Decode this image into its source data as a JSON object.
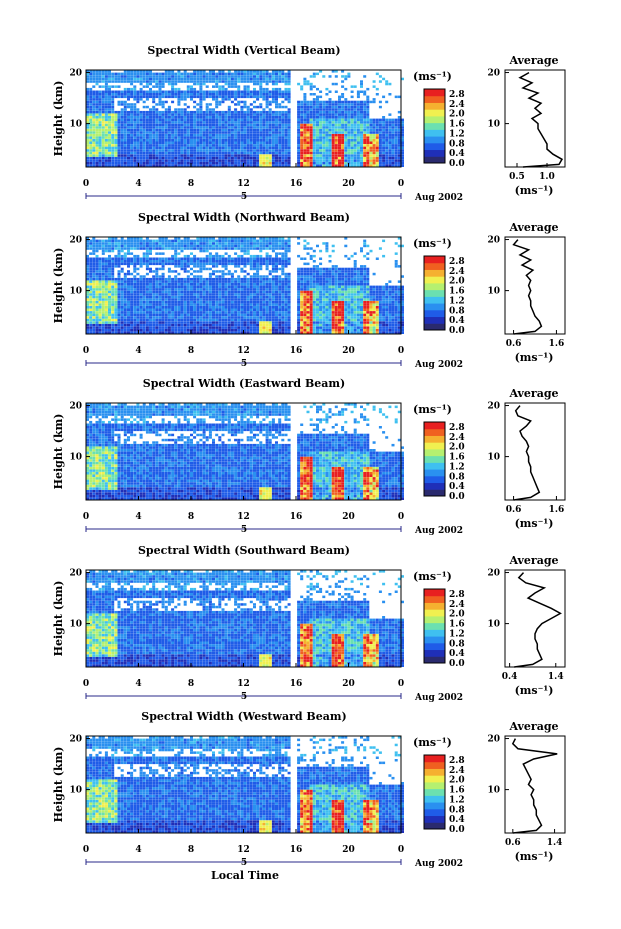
{
  "figure": {
    "xlabel": "Local Time",
    "date_label": "Aug 2002",
    "day_marker": "5",
    "colorbar_unit": "(ms⁻¹)",
    "average_title": "Average",
    "average_unit": "(ms⁻¹)"
  },
  "colors": {
    "scale": [
      "#2a2a6e",
      "#1f2fb8",
      "#1f5ce8",
      "#2a90f0",
      "#3fc0f0",
      "#6be0b0",
      "#b5f070",
      "#f0f050",
      "#f5b030",
      "#f06020",
      "#e82020"
    ]
  },
  "chart_data": [
    {
      "type": "heatmap",
      "title": "Spectral Width (Vertical Beam)",
      "ylabel": "Height (km)",
      "x_ticks": [
        "0",
        "4",
        "8",
        "12",
        "16",
        "20",
        "0"
      ],
      "y_ticks": [
        "20",
        "10"
      ],
      "xlim": [
        0,
        24
      ],
      "ylim": [
        1.5,
        20.5
      ],
      "colorbar_ticks": [
        "2.8",
        "2.4",
        "2.0",
        "1.6",
        "1.2",
        "0.8",
        "0.4",
        "0.0"
      ],
      "colorbar_range": [
        0,
        3.0
      ],
      "data_gap_hours": [
        15.6,
        16.0
      ],
      "average": {
        "xlabel_ticks": [
          "0.5",
          "1.0"
        ],
        "xlim": [
          0.3,
          1.3
        ],
        "y_ticks": [
          "20",
          "10"
        ],
        "height_km": [
          1.5,
          2,
          3,
          4,
          5,
          6,
          7,
          8,
          9,
          10,
          11,
          12,
          13,
          14,
          15,
          16,
          17,
          18,
          19,
          20
        ],
        "width": [
          0.6,
          1.2,
          1.25,
          1.1,
          1.0,
          1.0,
          0.95,
          0.9,
          0.85,
          0.85,
          0.75,
          0.9,
          0.8,
          0.9,
          0.7,
          0.85,
          0.6,
          0.75,
          0.55,
          0.7
        ]
      }
    },
    {
      "type": "heatmap",
      "title": "Spectral Width (Northward Beam)",
      "ylabel": "Height (km)",
      "x_ticks": [
        "0",
        "4",
        "8",
        "12",
        "16",
        "20",
        "0"
      ],
      "y_ticks": [
        "20",
        "10"
      ],
      "xlim": [
        0,
        24
      ],
      "ylim": [
        1.5,
        20.5
      ],
      "colorbar_ticks": [
        "2.8",
        "2.4",
        "2.0",
        "1.6",
        "1.2",
        "0.8",
        "0.4",
        "0.0"
      ],
      "colorbar_range": [
        0,
        3.0
      ],
      "data_gap_hours": [
        15.6,
        16.0
      ],
      "average": {
        "xlabel_ticks": [
          "0.6",
          "1.6"
        ],
        "xlim": [
          0.4,
          1.8
        ],
        "y_ticks": [
          "20",
          "10"
        ],
        "height_km": [
          1.5,
          2,
          3,
          4,
          5,
          6,
          7,
          8,
          9,
          10,
          11,
          12,
          13,
          14,
          15,
          16,
          17,
          18,
          19,
          20
        ],
        "width": [
          0.6,
          1.1,
          1.25,
          1.2,
          1.1,
          1.05,
          1.0,
          1.0,
          0.95,
          1.0,
          0.95,
          1.0,
          0.9,
          1.05,
          0.8,
          1.0,
          0.75,
          0.95,
          0.6,
          0.7
        ]
      }
    },
    {
      "type": "heatmap",
      "title": "Spectral Width (Eastward Beam)",
      "ylabel": "Height (km)",
      "x_ticks": [
        "0",
        "4",
        "8",
        "12",
        "16",
        "20",
        "0"
      ],
      "y_ticks": [
        "20",
        "10"
      ],
      "xlim": [
        0,
        24
      ],
      "ylim": [
        1.5,
        20.5
      ],
      "colorbar_ticks": [
        "2.8",
        "2.4",
        "2.0",
        "1.6",
        "1.2",
        "0.8",
        "0.4",
        "0.0"
      ],
      "colorbar_range": [
        0,
        3.0
      ],
      "data_gap_hours": [
        15.6,
        16.0
      ],
      "average": {
        "xlabel_ticks": [
          "0.6",
          "1.6"
        ],
        "xlim": [
          0.4,
          1.8
        ],
        "y_ticks": [
          "20",
          "10"
        ],
        "height_km": [
          1.5,
          2,
          3,
          4,
          5,
          6,
          7,
          8,
          9,
          10,
          11,
          12,
          13,
          14,
          15,
          16,
          17,
          18,
          19,
          20
        ],
        "width": [
          0.6,
          1.0,
          1.2,
          1.15,
          1.1,
          1.05,
          1.0,
          1.0,
          0.95,
          0.95,
          0.9,
          0.95,
          0.9,
          0.8,
          0.75,
          0.9,
          1.0,
          0.7,
          0.65,
          0.75
        ]
      }
    },
    {
      "type": "heatmap",
      "title": "Spectral Width (Southward Beam)",
      "ylabel": "Height (km)",
      "x_ticks": [
        "0",
        "4",
        "8",
        "12",
        "16",
        "20",
        "0"
      ],
      "y_ticks": [
        "20",
        "10"
      ],
      "xlim": [
        0,
        24
      ],
      "ylim": [
        1.5,
        20.5
      ],
      "colorbar_ticks": [
        "2.8",
        "2.4",
        "2.0",
        "1.6",
        "1.2",
        "0.8",
        "0.4",
        "0.0"
      ],
      "colorbar_range": [
        0,
        3.0
      ],
      "data_gap_hours": [
        15.6,
        16.0
      ],
      "average": {
        "xlabel_ticks": [
          "0.4",
          "1.4"
        ],
        "xlim": [
          0.3,
          1.6
        ],
        "y_ticks": [
          "20",
          "10"
        ],
        "height_km": [
          1.5,
          2,
          3,
          4,
          5,
          6,
          7,
          8,
          9,
          10,
          11,
          12,
          13,
          14,
          15,
          16,
          17,
          18,
          19,
          20
        ],
        "width": [
          0.5,
          0.9,
          1.1,
          1.05,
          1.0,
          1.0,
          0.95,
          0.95,
          1.0,
          1.1,
          1.3,
          1.5,
          1.3,
          1.05,
          0.8,
          0.95,
          1.15,
          0.75,
          0.6,
          0.7
        ]
      }
    },
    {
      "type": "heatmap",
      "title": "Spectral Width (Westward Beam)",
      "ylabel": "Height (km)",
      "x_ticks": [
        "0",
        "4",
        "8",
        "12",
        "16",
        "20",
        "0"
      ],
      "y_ticks": [
        "20",
        "10"
      ],
      "xlim": [
        0,
        24
      ],
      "ylim": [
        1.5,
        20.5
      ],
      "colorbar_ticks": [
        "2.8",
        "2.4",
        "2.0",
        "1.6",
        "1.2",
        "0.8",
        "0.4",
        "0.0"
      ],
      "colorbar_range": [
        0,
        3.0
      ],
      "data_gap_hours": [
        15.6,
        16.0
      ],
      "average": {
        "xlabel_ticks": [
          "0.6",
          "1.4"
        ],
        "xlim": [
          0.45,
          1.6
        ],
        "y_ticks": [
          "20",
          "10"
        ],
        "height_km": [
          1.5,
          2,
          3,
          4,
          5,
          6,
          7,
          8,
          9,
          10,
          11,
          12,
          13,
          14,
          15,
          16,
          17,
          18,
          19,
          20
        ],
        "width": [
          0.6,
          1.05,
          1.15,
          1.1,
          1.05,
          1.05,
          1.0,
          1.0,
          0.95,
          1.0,
          0.9,
          0.95,
          0.9,
          0.85,
          0.8,
          1.0,
          1.45,
          0.7,
          0.6,
          0.65
        ]
      }
    }
  ]
}
